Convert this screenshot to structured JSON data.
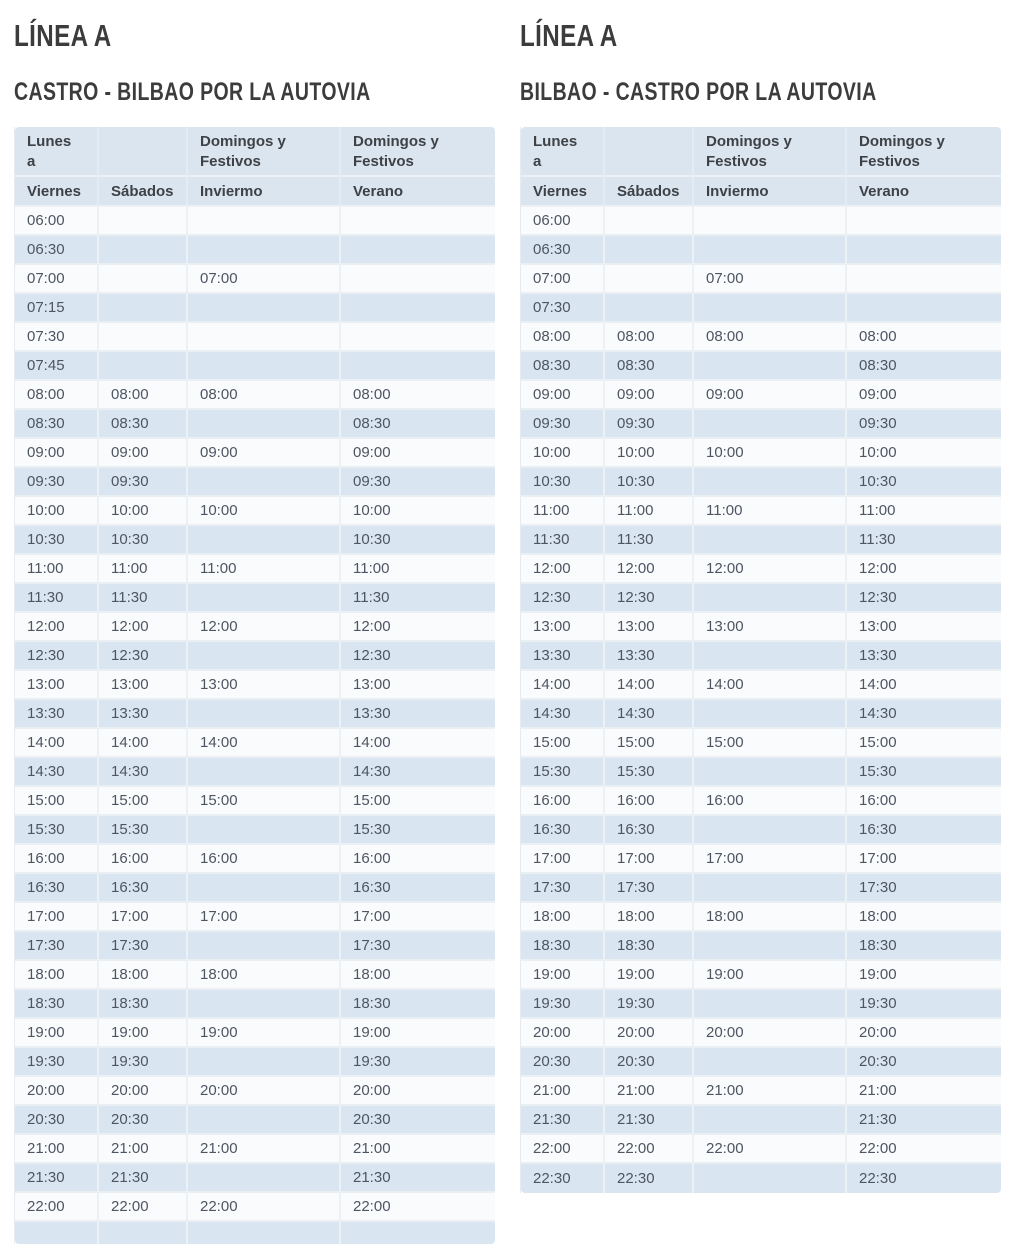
{
  "theme": {
    "header_bg": "#dbe5ef",
    "row_stripe_bg": "#d9e6f1",
    "row_bg": "#fafbfc",
    "grid_line": "#eaeff4",
    "time_text": "#4e5562",
    "header_text": "#3e4247",
    "heading_text": "#3c3c3c"
  },
  "sections": [
    {
      "line_title": "LÍNEA A",
      "route_title": "CASTRO - BILBAO POR LA AUTOVIA",
      "table": {
        "header_row1": [
          "Lunes\na",
          "",
          "Domingos y\nFestivos",
          "Domingos y\nFestivos"
        ],
        "header_row2": [
          "Viernes",
          "Sábados",
          "Inviermo",
          "Verano"
        ],
        "rows": [
          [
            "06:00",
            "",
            "",
            ""
          ],
          [
            "06:30",
            "",
            "",
            ""
          ],
          [
            "07:00",
            "",
            "07:00",
            ""
          ],
          [
            "07:15",
            "",
            "",
            ""
          ],
          [
            "07:30",
            "",
            "",
            ""
          ],
          [
            "07:45",
            "",
            "",
            ""
          ],
          [
            "08:00",
            "08:00",
            "08:00",
            "08:00"
          ],
          [
            "08:30",
            "08:30",
            "",
            "08:30"
          ],
          [
            "09:00",
            "09:00",
            "09:00",
            "09:00"
          ],
          [
            "09:30",
            "09:30",
            "",
            "09:30"
          ],
          [
            "10:00",
            "10:00",
            "10:00",
            "10:00"
          ],
          [
            "10:30",
            "10:30",
            "",
            "10:30"
          ],
          [
            "11:00",
            "11:00",
            "11:00",
            "11:00"
          ],
          [
            "11:30",
            "11:30",
            "",
            "11:30"
          ],
          [
            "12:00",
            "12:00",
            "12:00",
            "12:00"
          ],
          [
            "12:30",
            "12:30",
            "",
            "12:30"
          ],
          [
            "13:00",
            "13:00",
            "13:00",
            "13:00"
          ],
          [
            "13:30",
            "13:30",
            "",
            "13:30"
          ],
          [
            "14:00",
            "14:00",
            "14:00",
            "14:00"
          ],
          [
            "14:30",
            "14:30",
            "",
            "14:30"
          ],
          [
            "15:00",
            "15:00",
            "15:00",
            "15:00"
          ],
          [
            "15:30",
            "15:30",
            "",
            "15:30"
          ],
          [
            "16:00",
            "16:00",
            "16:00",
            "16:00"
          ],
          [
            "16:30",
            "16:30",
            "",
            "16:30"
          ],
          [
            "17:00",
            "17:00",
            "17:00",
            "17:00"
          ],
          [
            "17:30",
            "17:30",
            "",
            "17:30"
          ],
          [
            "18:00",
            "18:00",
            "18:00",
            "18:00"
          ],
          [
            "18:30",
            "18:30",
            "",
            "18:30"
          ],
          [
            "19:00",
            "19:00",
            "19:00",
            "19:00"
          ],
          [
            "19:30",
            "19:30",
            "",
            "19:30"
          ],
          [
            "20:00",
            "20:00",
            "20:00",
            "20:00"
          ],
          [
            "20:30",
            "20:30",
            "",
            "20:30"
          ],
          [
            "21:00",
            "21:00",
            "21:00",
            "21:00"
          ],
          [
            "21:30",
            "21:30",
            "",
            "21:30"
          ],
          [
            "22:00",
            "22:00",
            "22:00",
            "22:00"
          ]
        ],
        "trailing_empty_row": true
      }
    },
    {
      "line_title": "LÍNEA A",
      "route_title": "BILBAO - CASTRO POR LA AUTOVIA",
      "table": {
        "header_row1": [
          "Lunes\na",
          "",
          "Domingos y\nFestivos",
          "Domingos y\nFestivos"
        ],
        "header_row2": [
          "Viernes",
          "Sábados",
          "Inviermo",
          "Verano"
        ],
        "rows": [
          [
            "06:00",
            "",
            "",
            ""
          ],
          [
            "06:30",
            "",
            "",
            ""
          ],
          [
            "07:00",
            "",
            "07:00",
            ""
          ],
          [
            "07:30",
            "",
            "",
            ""
          ],
          [
            "08:00",
            "08:00",
            "08:00",
            "08:00"
          ],
          [
            "08:30",
            "08:30",
            "",
            "08:30"
          ],
          [
            "09:00",
            "09:00",
            "09:00",
            "09:00"
          ],
          [
            "09:30",
            "09:30",
            "",
            "09:30"
          ],
          [
            "10:00",
            "10:00",
            "10:00",
            "10:00"
          ],
          [
            "10:30",
            "10:30",
            "",
            "10:30"
          ],
          [
            "11:00",
            "11:00",
            "11:00",
            "11:00"
          ],
          [
            "11:30",
            "11:30",
            "",
            "11:30"
          ],
          [
            "12:00",
            "12:00",
            "12:00",
            "12:00"
          ],
          [
            "12:30",
            "12:30",
            "",
            "12:30"
          ],
          [
            "13:00",
            "13:00",
            "13:00",
            "13:00"
          ],
          [
            "13:30",
            "13:30",
            "",
            "13:30"
          ],
          [
            "14:00",
            "14:00",
            "14:00",
            "14:00"
          ],
          [
            "14:30",
            "14:30",
            "",
            "14:30"
          ],
          [
            "15:00",
            "15:00",
            "15:00",
            "15:00"
          ],
          [
            "15:30",
            "15:30",
            "",
            "15:30"
          ],
          [
            "16:00",
            "16:00",
            "16:00",
            "16:00"
          ],
          [
            "16:30",
            "16:30",
            "",
            "16:30"
          ],
          [
            "17:00",
            "17:00",
            "17:00",
            "17:00"
          ],
          [
            "17:30",
            "17:30",
            "",
            "17:30"
          ],
          [
            "18:00",
            "18:00",
            "18:00",
            "18:00"
          ],
          [
            "18:30",
            "18:30",
            "",
            "18:30"
          ],
          [
            "19:00",
            "19:00",
            "19:00",
            "19:00"
          ],
          [
            "19:30",
            "19:30",
            "",
            "19:30"
          ],
          [
            "20:00",
            "20:00",
            "20:00",
            "20:00"
          ],
          [
            "20:30",
            "20:30",
            "",
            "20:30"
          ],
          [
            "21:00",
            "21:00",
            "21:00",
            "21:00"
          ],
          [
            "21:30",
            "21:30",
            "",
            "21:30"
          ],
          [
            "22:00",
            "22:00",
            "22:00",
            "22:00"
          ],
          [
            "22:30",
            "22:30",
            "",
            "22:30"
          ]
        ],
        "trailing_empty_row": false
      }
    }
  ]
}
